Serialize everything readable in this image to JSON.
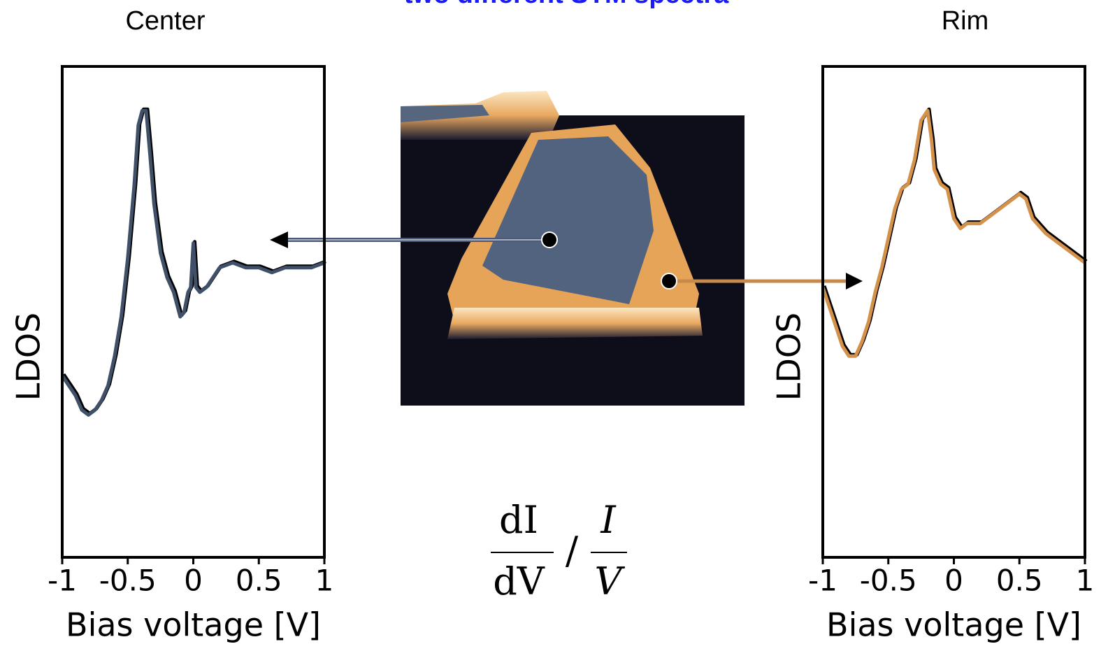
{
  "figure_title": "two different STM spectra",
  "formula": {
    "numerator_1": "dI",
    "denominator_1": "dV",
    "separator": "/",
    "numerator_2": "I",
    "denominator_2": "V"
  },
  "chart_data": [
    {
      "type": "line",
      "title": "Center",
      "x_label": "Bias voltage [V]",
      "y_label": "LDOS",
      "color": "#3f5068",
      "x": [
        -1,
        -0.9,
        -0.85,
        -0.8,
        -0.75,
        -0.7,
        -0.65,
        -0.6,
        -0.55,
        -0.5,
        -0.45,
        -0.42,
        -0.39,
        -0.36,
        -0.33,
        -0.3,
        -0.25,
        -0.2,
        -0.15,
        -0.1,
        -0.07,
        -0.04,
        -0.02,
        0,
        0.02,
        0.05,
        0.1,
        0.15,
        0.2,
        0.3,
        0.4,
        0.5,
        0.6,
        0.7,
        0.8,
        0.9,
        1
      ],
      "values": [
        0.37,
        0.33,
        0.3,
        0.29,
        0.3,
        0.32,
        0.35,
        0.41,
        0.49,
        0.61,
        0.76,
        0.88,
        0.91,
        0.91,
        0.82,
        0.72,
        0.62,
        0.57,
        0.54,
        0.49,
        0.5,
        0.54,
        0.55,
        0.64,
        0.55,
        0.54,
        0.55,
        0.57,
        0.59,
        0.6,
        0.59,
        0.59,
        0.58,
        0.59,
        0.59,
        0.59,
        0.6
      ],
      "xlim": [
        -1,
        1
      ],
      "ylim": [
        0,
        1
      ],
      "xticks": [
        -1,
        -0.5,
        0,
        0.5,
        1
      ]
    },
    {
      "type": "line",
      "title": "Rim",
      "x_label": "Bias voltage [V]",
      "y_label": "LDOS",
      "color": "#d4914a",
      "x": [
        -1,
        -0.95,
        -0.9,
        -0.85,
        -0.8,
        -0.75,
        -0.7,
        -0.65,
        -0.6,
        -0.55,
        -0.5,
        -0.45,
        -0.4,
        -0.35,
        -0.3,
        -0.25,
        -0.2,
        -0.17,
        -0.15,
        -0.1,
        -0.05,
        0,
        0.05,
        0.1,
        0.2,
        0.3,
        0.4,
        0.5,
        0.55,
        0.6,
        0.7,
        0.8,
        0.9,
        1
      ],
      "values": [
        0.55,
        0.51,
        0.47,
        0.43,
        0.41,
        0.41,
        0.44,
        0.48,
        0.54,
        0.59,
        0.65,
        0.71,
        0.75,
        0.76,
        0.81,
        0.89,
        0.91,
        0.85,
        0.79,
        0.76,
        0.75,
        0.69,
        0.67,
        0.68,
        0.68,
        0.7,
        0.72,
        0.74,
        0.73,
        0.69,
        0.66,
        0.64,
        0.62,
        0.6
      ],
      "xlim": [
        -1,
        1
      ],
      "ylim": [
        0,
        1
      ],
      "xticks": [
        -1,
        -0.5,
        0,
        0.5,
        1
      ]
    }
  ]
}
